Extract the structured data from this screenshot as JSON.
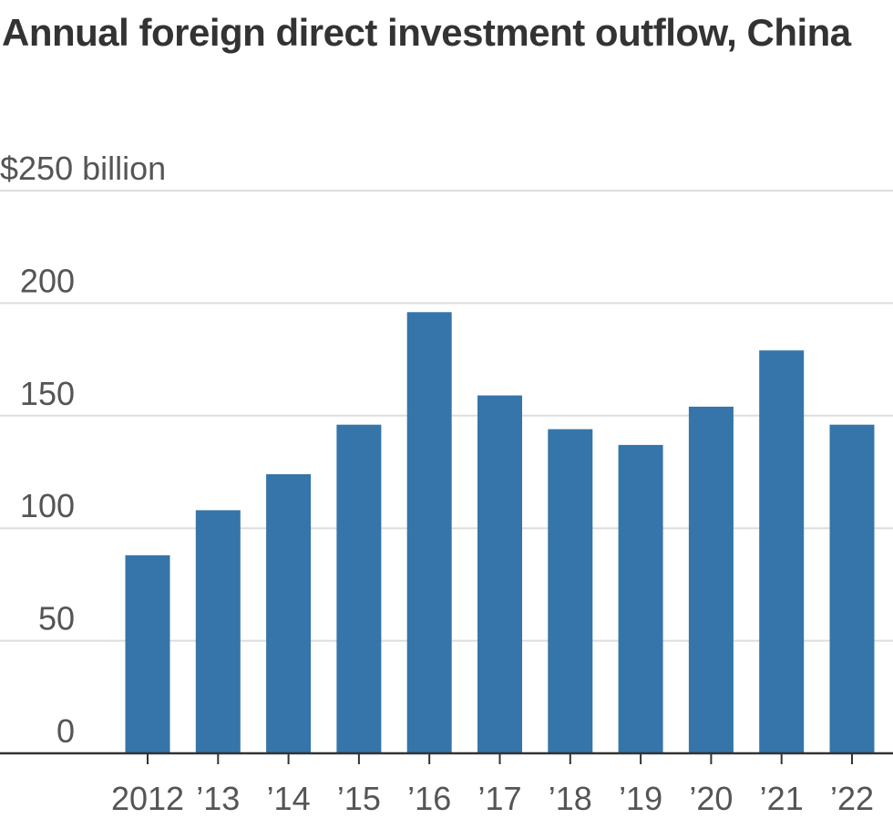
{
  "chart_data": {
    "type": "bar",
    "title": "Annual foreign direct investment outflow, China",
    "xlabel": "",
    "ylabel": "",
    "unit_label": "$250 billion",
    "ylim": [
      0,
      250
    ],
    "y_ticks": [
      0,
      50,
      100,
      150,
      200
    ],
    "categories": [
      "2012",
      "’13",
      "’14",
      "’15",
      "’16",
      "’17",
      "’18",
      "’19",
      "’20",
      "’21",
      "’22"
    ],
    "values": [
      88,
      108,
      124,
      146,
      196,
      159,
      144,
      137,
      154,
      179,
      146
    ],
    "grid": true,
    "colors": {
      "bar": "#3575a9",
      "grid": "#dddddd",
      "axis": "#333333"
    }
  }
}
